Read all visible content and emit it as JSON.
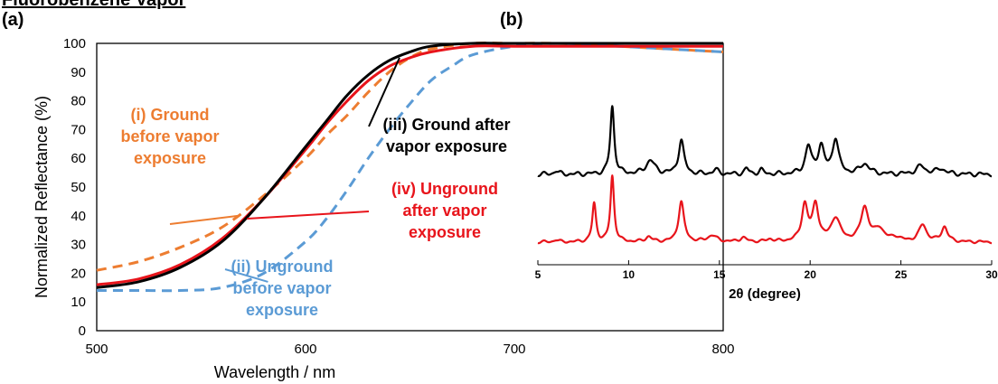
{
  "header": {
    "title": "Fluorobenzene Vapor",
    "panel_a": "(a)",
    "panel_b": "(b)"
  },
  "colors": {
    "orange": "#ED7D31",
    "blue": "#5B9BD5",
    "red": "#E8141B",
    "black": "#000000"
  },
  "chart_data": [
    {
      "type": "line",
      "title": "",
      "xlabel": "Wavelength / nm",
      "ylabel": "Normalized Reflectance (%)",
      "xlim": [
        500,
        800
      ],
      "ylim": [
        0,
        100
      ],
      "xticks": [
        500,
        600,
        700,
        800
      ],
      "yticks": [
        0,
        10,
        20,
        30,
        40,
        50,
        60,
        70,
        80,
        90,
        100
      ],
      "grid": false,
      "series": [
        {
          "id": "i",
          "style": "dashed",
          "color": "#ED7D31",
          "x": [
            500,
            520,
            540,
            560,
            580,
            600,
            610,
            620,
            630,
            640,
            650,
            660,
            680,
            700,
            720,
            750,
            800
          ],
          "y": [
            21,
            24,
            29,
            36,
            47,
            60,
            68,
            75,
            83,
            90,
            95,
            98,
            100,
            100,
            100,
            99,
            97
          ]
        },
        {
          "id": "ii",
          "style": "dashed",
          "color": "#5B9BD5",
          "x": [
            500,
            520,
            540,
            560,
            580,
            600,
            610,
            620,
            630,
            640,
            650,
            660,
            670,
            680,
            700,
            720,
            750,
            800
          ],
          "y": [
            14,
            14,
            14,
            15,
            20,
            31,
            39,
            49,
            60,
            70,
            79,
            87,
            92,
            96,
            99,
            100,
            99,
            97
          ]
        },
        {
          "id": "iii",
          "style": "solid",
          "color": "#000000",
          "x": [
            500,
            520,
            540,
            560,
            580,
            600,
            610,
            620,
            630,
            640,
            650,
            660,
            680,
            700,
            750,
            800
          ],
          "y": [
            15,
            17,
            22,
            31,
            46,
            64,
            73,
            82,
            89,
            94,
            97,
            99,
            100,
            100,
            100,
            100
          ]
        },
        {
          "id": "iv",
          "style": "solid",
          "color": "#E8141B",
          "x": [
            500,
            520,
            540,
            560,
            580,
            600,
            610,
            620,
            630,
            640,
            650,
            660,
            680,
            700,
            750,
            800
          ],
          "y": [
            16,
            18,
            23,
            32,
            46,
            63,
            72,
            80,
            87,
            92,
            95,
            97,
            99,
            99,
            99,
            99
          ]
        }
      ],
      "annotations": [
        {
          "id": "i",
          "lines": [
            "(i) Ground",
            "before vapor",
            "exposure"
          ],
          "color": "#ED7D31",
          "arrow_to": [
            568,
            40
          ]
        },
        {
          "id": "ii",
          "lines": [
            "(ii) Unground",
            "before vapor",
            "exposure"
          ],
          "color": "#5B9BD5",
          "arrow_to": [
            582,
            17
          ]
        },
        {
          "id": "iii",
          "lines": [
            "(iii) Ground after",
            "vapor exposure"
          ],
          "color": "#000000",
          "arrow_to": [
            645,
            95
          ]
        },
        {
          "id": "iv",
          "lines": [
            "(iv) Unground",
            "after vapor",
            "exposure"
          ],
          "color": "#E8141B",
          "arrow_to": [
            572,
            39
          ]
        }
      ]
    },
    {
      "type": "line",
      "title": "",
      "xlabel": "2θ (degree)",
      "ylabel": "",
      "xlim": [
        5,
        30
      ],
      "xticks": [
        5,
        10,
        15,
        20,
        25,
        30
      ],
      "grid": false,
      "y_axis_shown": false,
      "series": [
        {
          "id": "black",
          "color": "#000000",
          "baseline": 0.2,
          "peaks": [
            [
              6,
              0.05,
              0.15
            ],
            [
              9.1,
              1.0,
              0.13
            ],
            [
              11.2,
              0.2,
              0.3
            ],
            [
              12.9,
              0.5,
              0.18
            ],
            [
              14.8,
              0.06,
              0.2
            ],
            [
              16.5,
              0.08,
              0.15
            ],
            [
              17.3,
              0.06,
              0.15
            ],
            [
              19.9,
              0.4,
              0.2
            ],
            [
              20.6,
              0.4,
              0.2
            ],
            [
              21.4,
              0.52,
              0.2
            ],
            [
              23,
              0.15,
              0.3
            ],
            [
              26.1,
              0.12,
              0.3
            ],
            [
              27.2,
              0.08,
              0.3
            ]
          ]
        },
        {
          "id": "red",
          "color": "#E8141B",
          "baseline": 0.2,
          "peaks": [
            [
              6,
              0.05,
              0.15
            ],
            [
              8.1,
              0.9,
              0.12
            ],
            [
              9.1,
              1.55,
              0.12
            ],
            [
              11.1,
              0.12,
              0.2
            ],
            [
              12.9,
              0.95,
              0.18
            ],
            [
              14.6,
              0.15,
              0.3
            ],
            [
              16.3,
              0.1,
              0.2
            ],
            [
              17.8,
              0.06,
              0.2
            ],
            [
              19.7,
              0.85,
              0.2
            ],
            [
              20.3,
              0.85,
              0.2
            ],
            [
              21.4,
              0.55,
              0.3
            ],
            [
              23,
              0.8,
              0.25
            ],
            [
              23.8,
              0.3,
              0.3
            ],
            [
              24.7,
              0.1,
              0.3
            ],
            [
              26.2,
              0.4,
              0.25
            ],
            [
              27.4,
              0.35,
              0.2
            ]
          ]
        }
      ]
    }
  ]
}
